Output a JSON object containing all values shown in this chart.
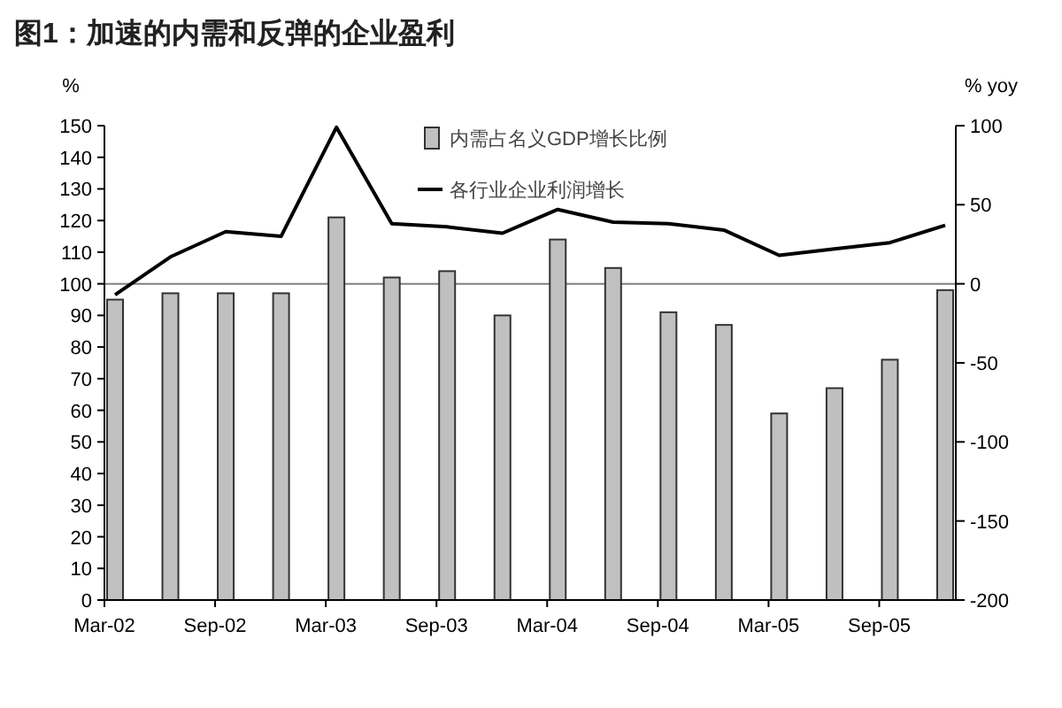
{
  "chart_data": {
    "type": "bar",
    "title": "图1：加速的内需和反弹的企业盈利",
    "ylabel": "%",
    "y2label": "% yoy",
    "categories": [
      "Mar-02",
      null,
      "Sep-02",
      null,
      "Mar-03",
      null,
      "Sep-03",
      null,
      "Mar-04",
      null,
      "Sep-04",
      null,
      "Mar-05",
      null,
      "Sep-05",
      null
    ],
    "series": [
      {
        "name": "内需占名义GDP增长比例",
        "color": "#c0c0c0",
        "values": [
          95,
          97,
          97,
          97,
          121,
          102,
          104,
          90,
          114,
          105,
          91,
          87,
          59,
          67,
          76,
          98
        ]
      },
      {
        "name": "各行业企业利润增长",
        "type": "line",
        "axis": "y2",
        "color": "#000000",
        "values": [
          -7,
          17,
          33,
          30,
          99,
          38,
          36,
          32,
          47,
          39,
          38,
          34,
          18,
          22,
          26,
          37
        ]
      }
    ],
    "ylim": [
      0,
      150
    ],
    "yticks": [
      0,
      10,
      20,
      30,
      40,
      50,
      60,
      70,
      80,
      90,
      100,
      110,
      120,
      130,
      140,
      150
    ],
    "y2lim": [
      -200,
      100
    ],
    "y2ticks": [
      -200,
      -150,
      -100,
      -50,
      0,
      50,
      100
    ],
    "ref_lines": [
      {
        "axis": "y2",
        "value": 0,
        "color": "#808080"
      }
    ],
    "legend": "top"
  }
}
